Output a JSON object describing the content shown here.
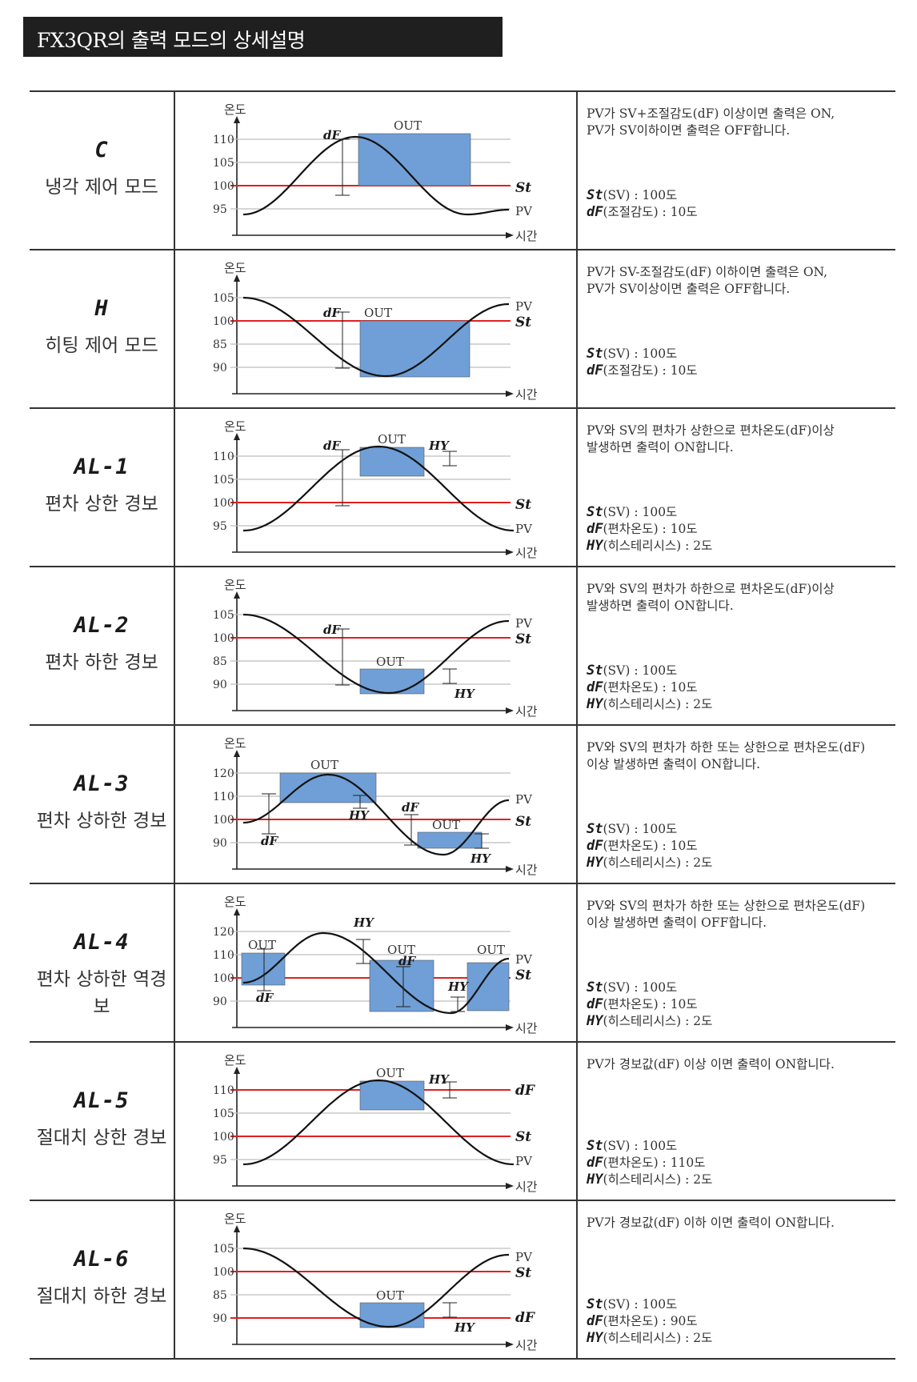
{
  "title": "FX3QR의 출력 모드의 상세설명",
  "axis": {
    "y_label": "온도",
    "x_label": "시간"
  },
  "labels": {
    "out": "OUT",
    "pv": "PV",
    "st": "St",
    "df": "dF",
    "hy": "HY"
  },
  "colors": {
    "out_fill": "#6f9fd6",
    "setpoint_line": "#e02020",
    "grid": "#bdbdbd",
    "curve": "#111111"
  },
  "modes": [
    {
      "code": "C",
      "name": "냉각 제어 모드",
      "desc1": "PV가 SV+조절감도(dF) 이상이면 출력은 ON,",
      "desc2": "PV가 SV이하이면 출력은 OFF합니다.",
      "p1_code": "St",
      "p1_text": "(SV) : 100도",
      "p2_code": "dF",
      "p2_text": "(조절감도) : 10도",
      "p3_code": "",
      "p3_text": "",
      "ticks": [
        "110",
        "105",
        "100",
        "95"
      ],
      "right_labels": [
        "St",
        "PV"
      ]
    },
    {
      "code": "H",
      "name": "히팅 제어 모드",
      "desc1": "PV가 SV-조절감도(dF) 이하이면 출력은 ON,",
      "desc2": "PV가 SV이상이면 출력은 OFF합니다.",
      "p1_code": "St",
      "p1_text": "(SV) : 100도",
      "p2_code": "dF",
      "p2_text": "(조절감도) : 10도",
      "p3_code": "",
      "p3_text": "",
      "ticks": [
        "105",
        "100",
        "85",
        "90"
      ],
      "right_labels": [
        "PV",
        "St"
      ]
    },
    {
      "code": "AL-1",
      "name": "편차 상한 경보",
      "desc1": "PV와 SV의 편차가 상한으로 편차온도(dF)이상",
      "desc2": "발생하면 출력이 ON합니다.",
      "p1_code": "St",
      "p1_text": "(SV) : 100도",
      "p2_code": "dF",
      "p2_text": "(편차온도) : 10도",
      "p3_code": "HY",
      "p3_text": "(히스테리시스) : 2도",
      "ticks": [
        "110",
        "105",
        "100",
        "95"
      ],
      "right_labels": [
        "St",
        "PV"
      ]
    },
    {
      "code": "AL-2",
      "name": "편차 하한 경보",
      "desc1": "PV와 SV의 편차가 하한으로 편차온도(dF)이상",
      "desc2": "발생하면 출력이 ON합니다.",
      "p1_code": "St",
      "p1_text": "(SV) : 100도",
      "p2_code": "dF",
      "p2_text": "(편차온도) : 10도",
      "p3_code": "HY",
      "p3_text": "(히스테리시스) : 2도",
      "ticks": [
        "105",
        "100",
        "85",
        "90"
      ],
      "right_labels": [
        "PV",
        "St"
      ]
    },
    {
      "code": "AL-3",
      "name": "편차 상하한 경보",
      "desc1": "PV와 SV의 편차가 하한 또는 상한으로 편차온도(dF)",
      "desc2": "이상 발생하면 출력이 ON합니다.",
      "p1_code": "St",
      "p1_text": "(SV) : 100도",
      "p2_code": "dF",
      "p2_text": "(편차온도) : 10도",
      "p3_code": "HY",
      "p3_text": "(히스테리시스) : 2도",
      "ticks": [
        "120",
        "110",
        "100",
        "90"
      ],
      "right_labels": [
        "PV",
        "St"
      ]
    },
    {
      "code": "AL-4",
      "name": "편차 상하한 역경보",
      "desc1": "PV와 SV의 편차가 하한 또는 상한으로 편차온도(dF)",
      "desc2": "이상 발생하면 출력이 OFF합니다.",
      "p1_code": "St",
      "p1_text": "(SV) : 100도",
      "p2_code": "dF",
      "p2_text": "(편차온도) : 10도",
      "p3_code": "HY",
      "p3_text": "(히스테리시스) : 2도",
      "ticks": [
        "120",
        "110",
        "100",
        "90"
      ],
      "right_labels": [
        "PV",
        "St"
      ]
    },
    {
      "code": "AL-5",
      "name": "절대치 상한 경보",
      "desc1": "PV가 경보값(dF) 이상 이면 출력이 ON합니다.",
      "desc2": "",
      "p1_code": "St",
      "p1_text": "(SV) : 100도",
      "p2_code": "dF",
      "p2_text": "(편차온도) : 110도",
      "p3_code": "HY",
      "p3_text": "(히스테리시스) : 2도",
      "ticks": [
        "110",
        "105",
        "100",
        "95"
      ],
      "right_labels": [
        "dF",
        "St",
        "PV"
      ]
    },
    {
      "code": "AL-6",
      "name": "절대치 하한 경보",
      "desc1": "PV가 경보값(dF) 이하 이면 출력이 ON합니다.",
      "desc2": "",
      "p1_code": "St",
      "p1_text": "(SV) : 100도",
      "p2_code": "dF",
      "p2_text": "(편차온도) : 90도",
      "p3_code": "HY",
      "p3_text": "(히스테리시스) : 2도",
      "ticks": [
        "105",
        "100",
        "85",
        "90"
      ],
      "right_labels": [
        "PV",
        "St",
        "dF"
      ]
    }
  ]
}
